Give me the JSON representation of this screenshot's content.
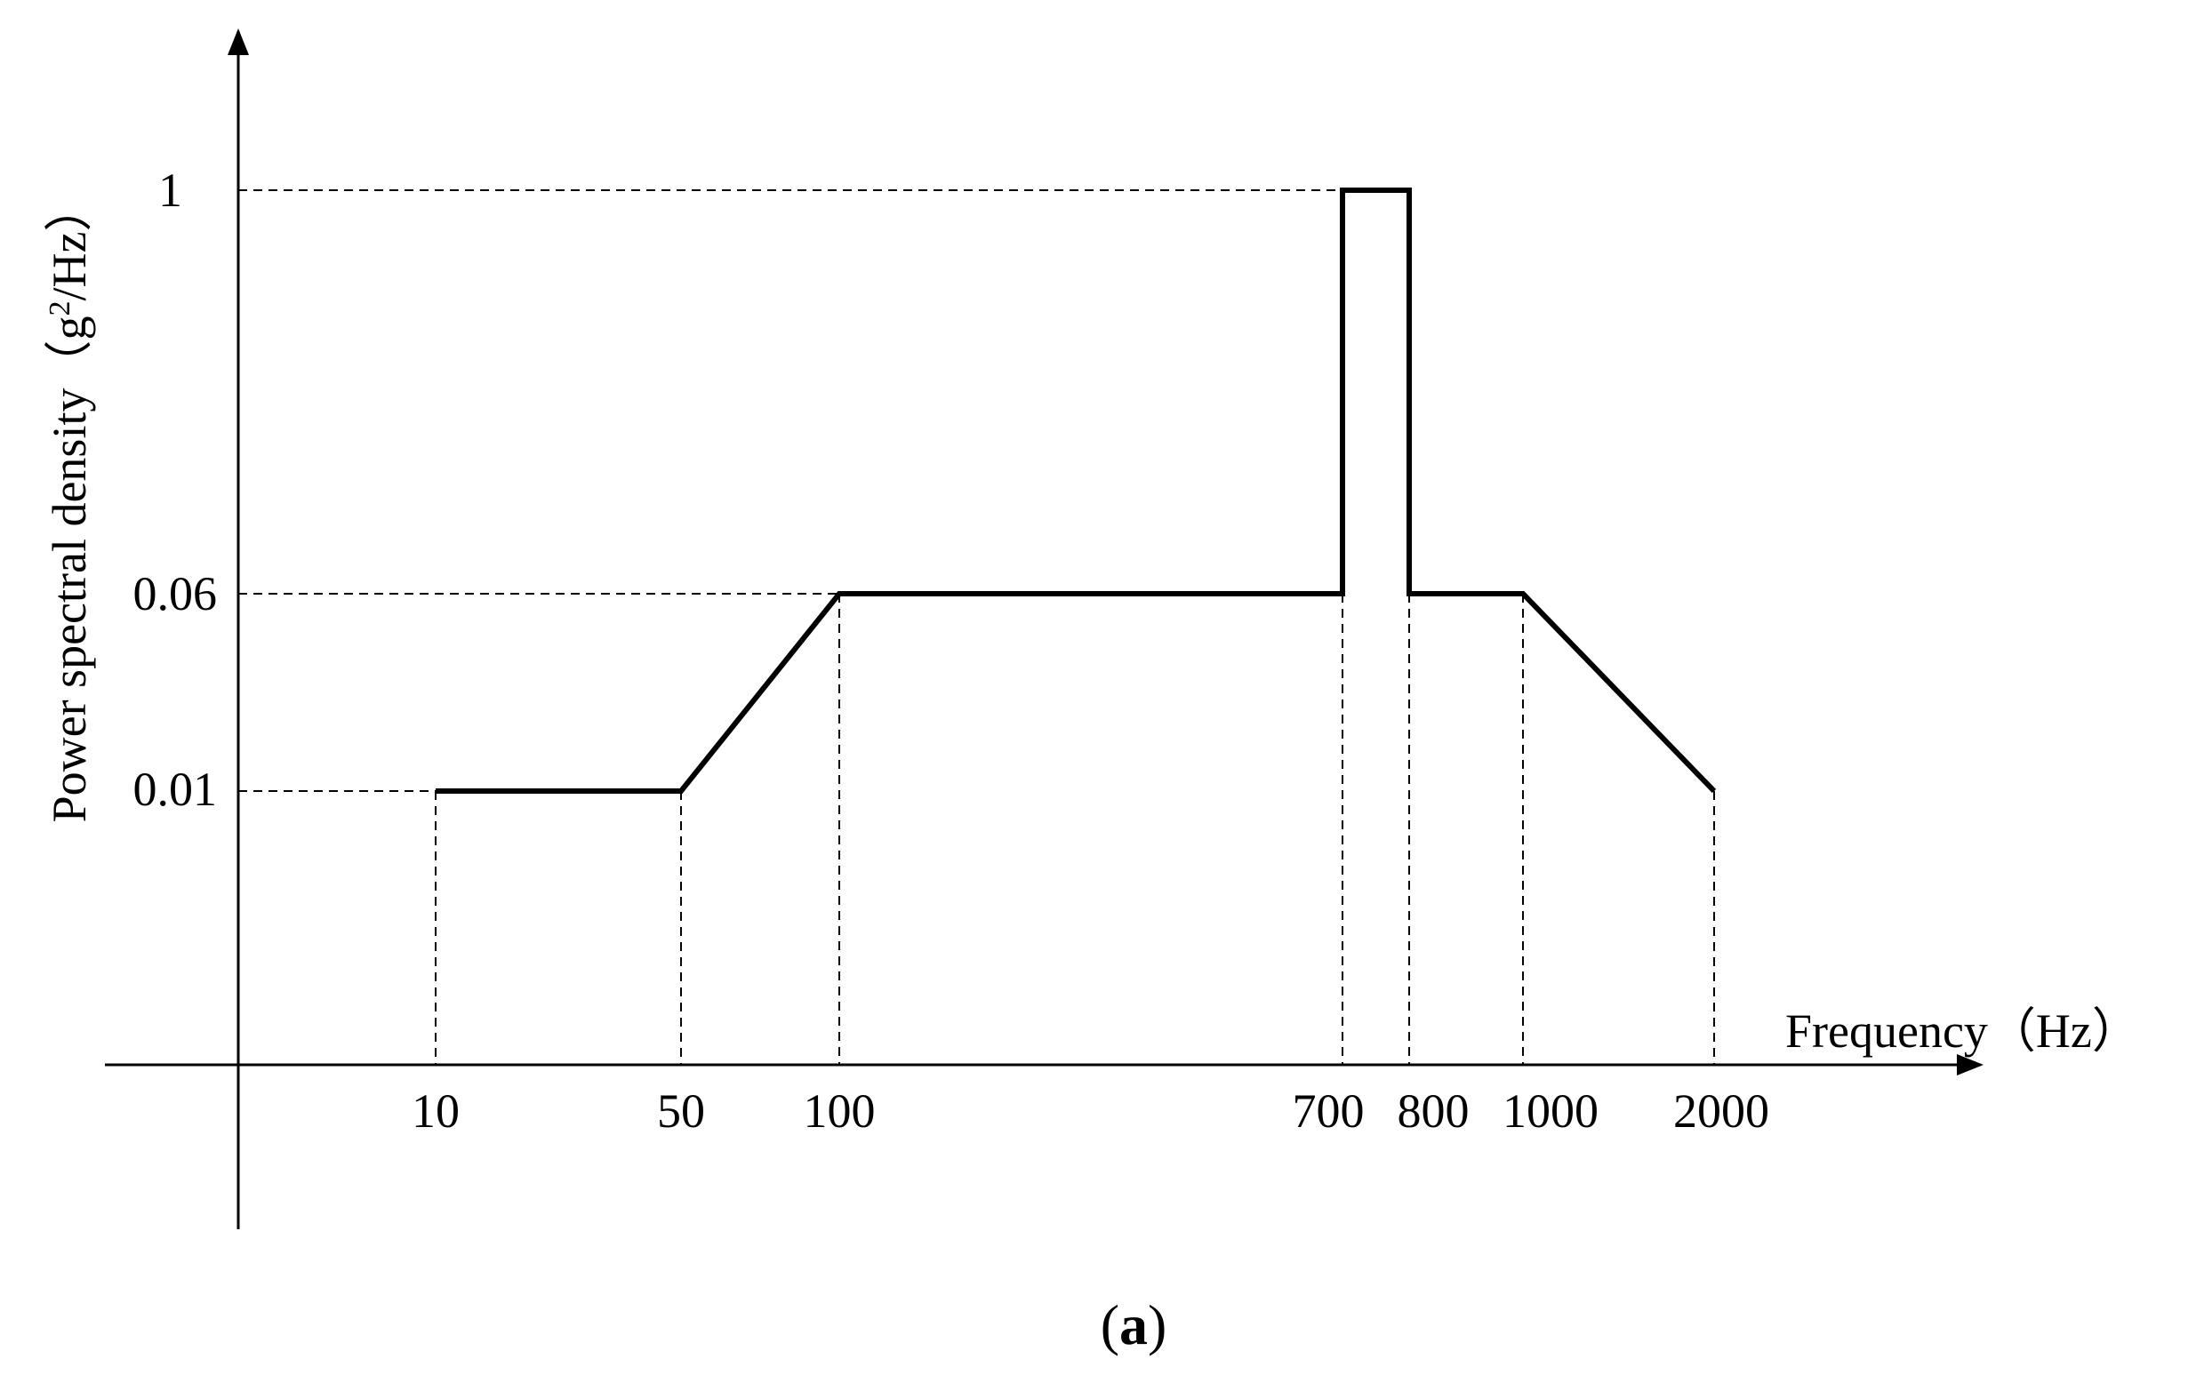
{
  "chart_data": {
    "type": "line",
    "title": "",
    "xlabel": "Frequency（Hz）",
    "ylabel_main": "Power spectral density（g",
    "ylabel_sup": "2",
    "ylabel_tail": "/Hz）",
    "panel_label": {
      "open": "(",
      "letter": "a",
      "close": ")"
    },
    "x_ticks": [
      "10",
      "50",
      "100",
      "700",
      "800",
      "1000",
      "2000"
    ],
    "y_ticks": [
      "0.01",
      "0.06",
      "1"
    ],
    "series": [
      {
        "points": [
          {
            "x": 10,
            "y": 0.01
          },
          {
            "x": 50,
            "y": 0.01
          },
          {
            "x": 100,
            "y": 0.06
          },
          {
            "x": 700,
            "y": 0.06
          },
          {
            "x": 700,
            "y": 1
          },
          {
            "x": 800,
            "y": 1
          },
          {
            "x": 800,
            "y": 0.06
          },
          {
            "x": 1000,
            "y": 0.06
          },
          {
            "x": 2000,
            "y": 0.01
          }
        ]
      }
    ],
    "grid": false,
    "reference_lines": "dashed",
    "colors": {
      "line": "#000000",
      "axis": "#000000",
      "background": "#ffffff"
    }
  }
}
